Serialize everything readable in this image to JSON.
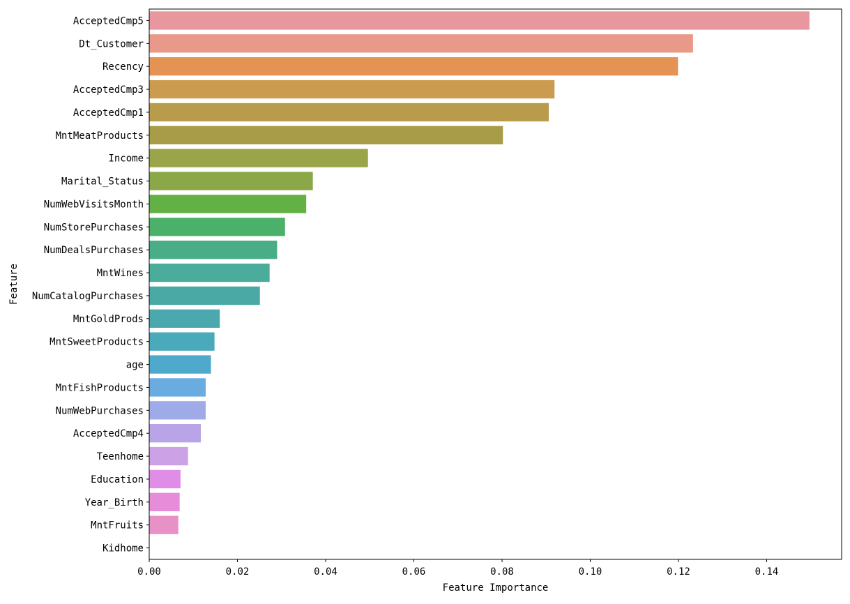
{
  "chart_data": {
    "type": "bar",
    "orientation": "horizontal",
    "title": "",
    "xlabel": "Feature Importance",
    "ylabel": "Feature",
    "xlim": [
      0,
      0.157
    ],
    "xticks": [
      0.0,
      0.02,
      0.04,
      0.06,
      0.08,
      0.1,
      0.12,
      0.14
    ],
    "xtick_labels": [
      "0.00",
      "0.02",
      "0.04",
      "0.06",
      "0.08",
      "0.10",
      "0.12",
      "0.14"
    ],
    "grid": false,
    "legend": "none",
    "categories": [
      "AcceptedCmp5",
      "Dt_Customer",
      "Recency",
      "AcceptedCmp3",
      "AcceptedCmp1",
      "MntMeatProducts",
      "Income",
      "Marital_Status",
      "NumWebVisitsMonth",
      "NumStorePurchases",
      "NumDealsPurchases",
      "MntWines",
      "NumCatalogPurchases",
      "MntGoldProds",
      "MntSweetProducts",
      "age",
      "MntFishProducts",
      "NumWebPurchases",
      "AcceptedCmp4",
      "Teenhome",
      "Education",
      "Year_Birth",
      "MntFruits",
      "Kidhome"
    ],
    "values": [
      0.1497,
      0.1233,
      0.1199,
      0.0919,
      0.0906,
      0.0802,
      0.0496,
      0.0371,
      0.0356,
      0.0308,
      0.029,
      0.0273,
      0.0251,
      0.016,
      0.0148,
      0.014,
      0.0128,
      0.0128,
      0.0117,
      0.0088,
      0.0071,
      0.0069,
      0.0066,
      0.0
    ],
    "colors": [
      "#e8979f",
      "#e8998a",
      "#e49355",
      "#cb9c4f",
      "#b99c4b",
      "#a99c48",
      "#9aa54a",
      "#8aa848",
      "#63b045",
      "#4bb16a",
      "#49ae88",
      "#4aac9a",
      "#4aa9a5",
      "#4aa8ae",
      "#4aa9ba",
      "#4fa9cc",
      "#6aabe0",
      "#9eabe8",
      "#b9a4e8",
      "#cca1e6",
      "#e08de8",
      "#e68cd8",
      "#e891c6",
      "#e794b6"
    ]
  }
}
